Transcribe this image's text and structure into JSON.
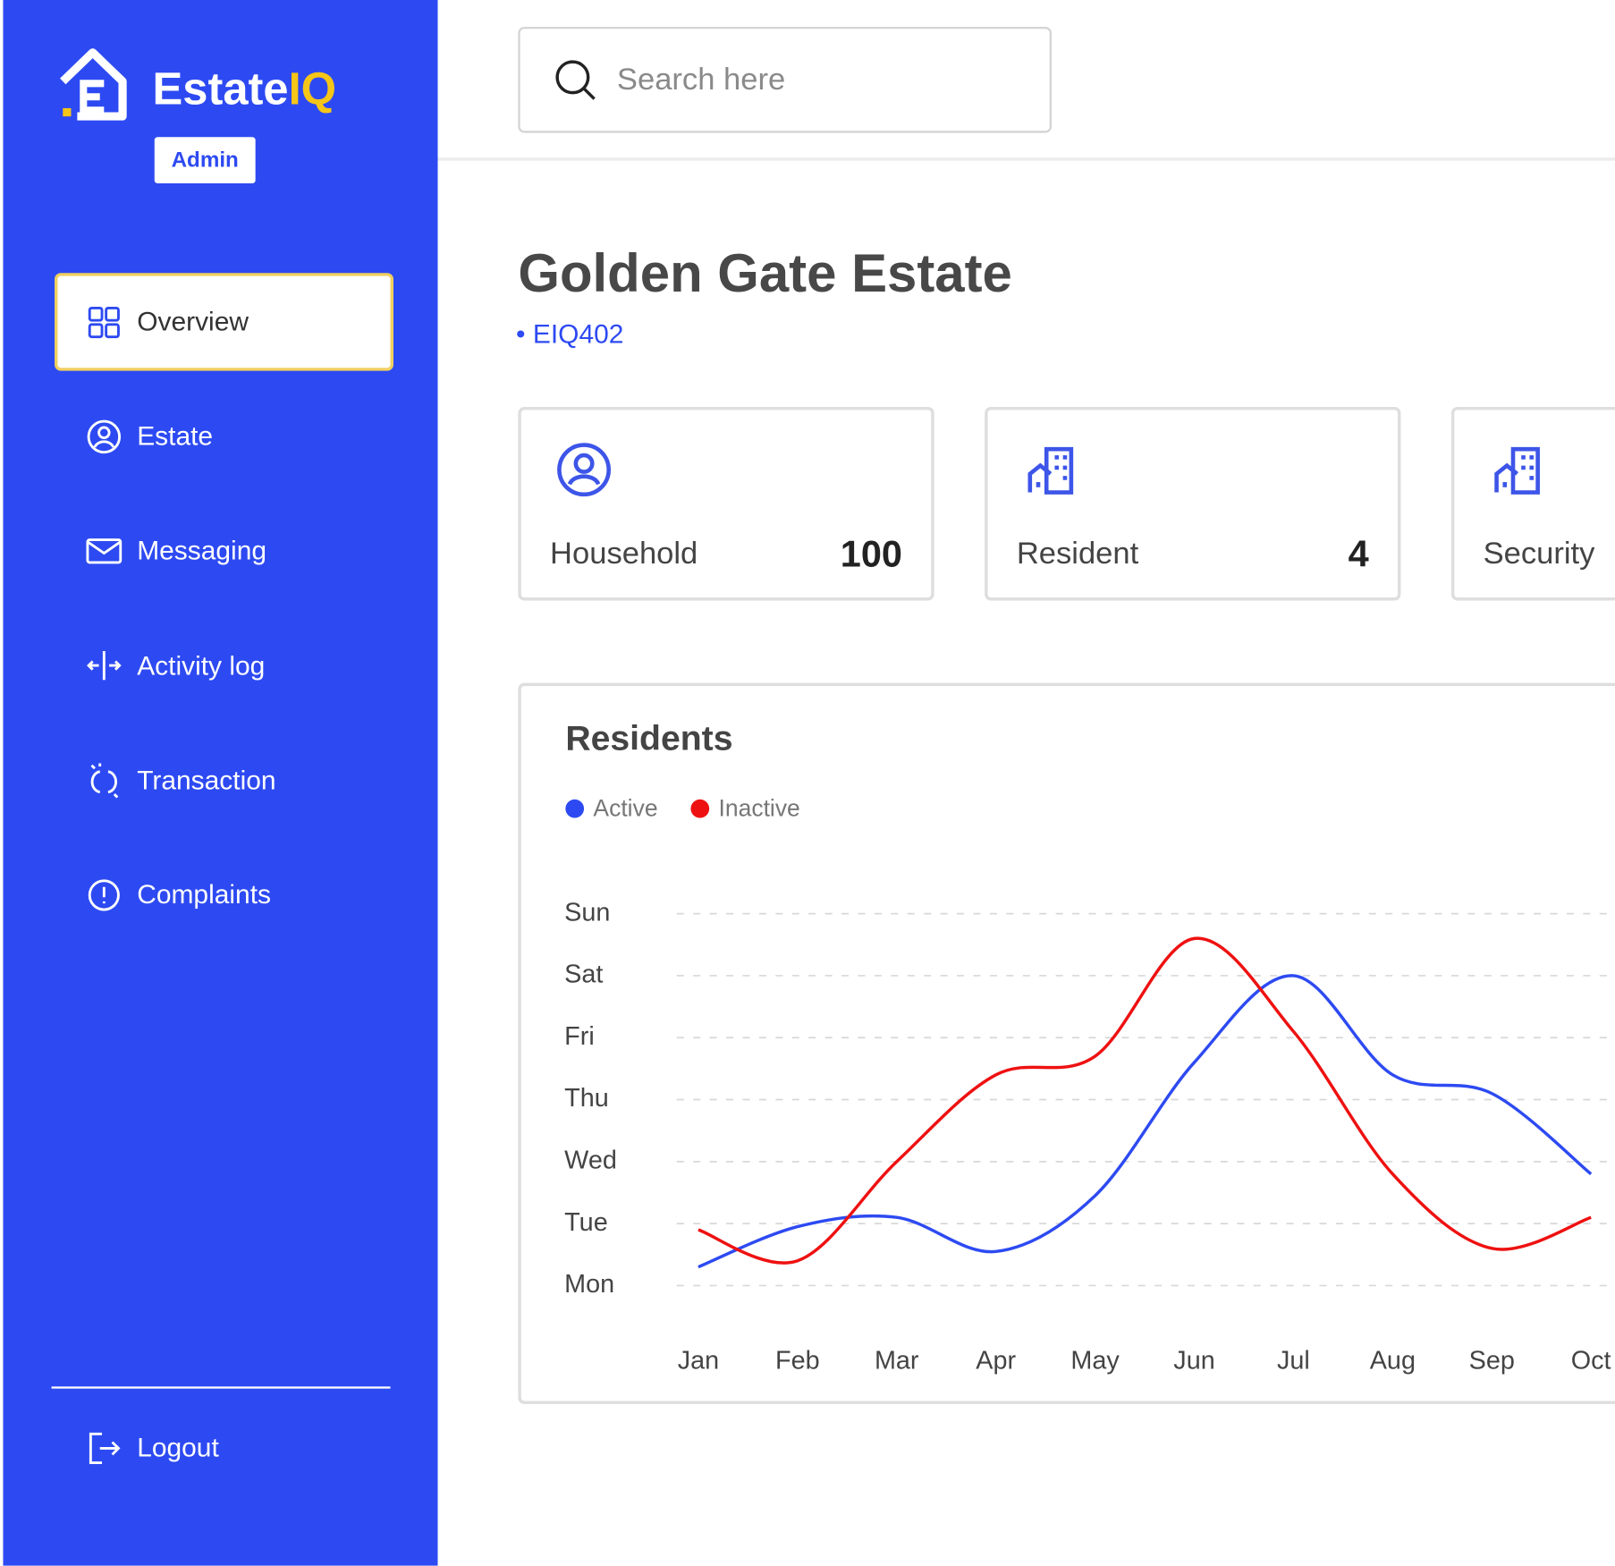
{
  "sidebar": {
    "brand_prefix": "Estate",
    "brand_suffix": "IQ",
    "role": "Admin",
    "nav": [
      "Overview",
      "Estate",
      "Messaging",
      "Activity log",
      "Transaction",
      "Complaints"
    ],
    "active": "Overview",
    "logout": "Logout"
  },
  "header": {
    "search_placeholder": "Search here"
  },
  "estate": {
    "name": "Golden Gate Estate",
    "code": "EIQ402"
  },
  "stats": [
    {
      "label": "Household",
      "value": "100"
    },
    {
      "label": "Resident",
      "value": "4"
    },
    {
      "label": "Security",
      "value": ""
    }
  ],
  "chart_data": {
    "type": "line",
    "title": "Residents",
    "categories": [
      "Jan",
      "Feb",
      "Mar",
      "Apr",
      "May",
      "Jun",
      "Jul",
      "Aug",
      "Sep",
      "Oct"
    ],
    "series": [
      {
        "name": "Active",
        "color": "#2d4af2",
        "values": [
          0.3,
          0.95,
          1.1,
          0.55,
          1.45,
          3.6,
          5.0,
          3.4,
          3.1,
          1.8
        ]
      },
      {
        "name": "Inactive",
        "color": "#ee1111",
        "values": [
          0.9,
          0.4,
          2.0,
          3.4,
          3.7,
          5.6,
          4.1,
          1.8,
          0.6,
          1.1
        ]
      }
    ],
    "ylim": [
      0,
      6
    ],
    "yticks": [
      {
        "value": 0,
        "label": "Mon"
      },
      {
        "value": 1,
        "label": "Tue"
      },
      {
        "value": 2,
        "label": "Wed"
      },
      {
        "value": 3,
        "label": "Thu"
      },
      {
        "value": 4,
        "label": "Fri"
      },
      {
        "value": 5,
        "label": "Sat"
      },
      {
        "value": 6,
        "label": "Sun"
      }
    ],
    "grid": true
  }
}
